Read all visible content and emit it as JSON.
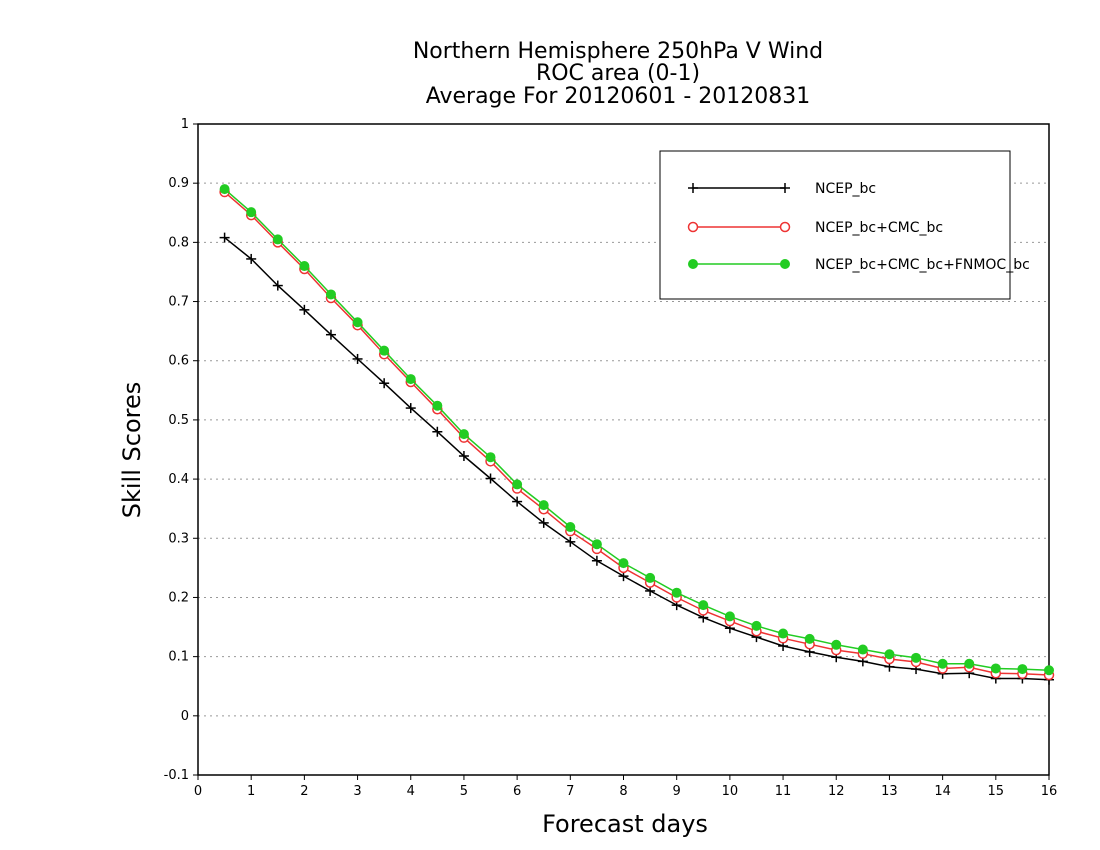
{
  "chart_data": {
    "type": "line",
    "title": [
      "Northern Hemisphere 250hPa V Wind",
      "ROC area (0-1)",
      "Average For 20120601 - 20120831"
    ],
    "xlabel": "Forecast days",
    "ylabel": "Skill Scores",
    "xlim": [
      0,
      16
    ],
    "ylim": [
      -0.1,
      1
    ],
    "xticks": [
      0,
      1,
      2,
      3,
      4,
      5,
      6,
      7,
      8,
      9,
      10,
      11,
      12,
      13,
      14,
      15,
      16
    ],
    "yticks": [
      -0.1,
      0,
      0.1,
      0.2,
      0.3,
      0.4,
      0.5,
      0.6,
      0.7,
      0.8,
      0.9,
      1
    ],
    "ytick_labels": [
      "-0.1",
      "0",
      "0.1",
      "0.2",
      "0.3",
      "0.4",
      "0.5",
      "0.6",
      "0.7",
      "0.8",
      "0.9",
      "1"
    ],
    "grid": "horizontal dotted",
    "legend_position": "top-right",
    "x": [
      0.5,
      1,
      1.5,
      2,
      2.5,
      3,
      3.5,
      4,
      4.5,
      5,
      5.5,
      6,
      6.5,
      7,
      7.5,
      8,
      8.5,
      9,
      9.5,
      10,
      10.5,
      11,
      11.5,
      12,
      12.5,
      13,
      13.5,
      14,
      14.5,
      15,
      15.5,
      16
    ],
    "series": [
      {
        "name": "NCEP_bc",
        "color": "#000000",
        "marker": "plus",
        "values": [
          0.808,
          0.772,
          0.727,
          0.686,
          0.644,
          0.603,
          0.562,
          0.52,
          0.48,
          0.439,
          0.401,
          0.362,
          0.326,
          0.294,
          0.262,
          0.236,
          0.211,
          0.187,
          0.166,
          0.148,
          0.133,
          0.118,
          0.108,
          0.099,
          0.092,
          0.083,
          0.079,
          0.071,
          0.072,
          0.063,
          0.063,
          0.061
        ]
      },
      {
        "name": "NCEP_bc+CMC_bc",
        "color": "#ee3333",
        "marker": "open-circle",
        "values": [
          0.885,
          0.846,
          0.8,
          0.755,
          0.706,
          0.66,
          0.611,
          0.564,
          0.518,
          0.47,
          0.43,
          0.384,
          0.349,
          0.312,
          0.282,
          0.25,
          0.225,
          0.2,
          0.178,
          0.16,
          0.143,
          0.131,
          0.121,
          0.111,
          0.105,
          0.096,
          0.091,
          0.08,
          0.082,
          0.072,
          0.071,
          0.069
        ]
      },
      {
        "name": "NCEP_bc+CMC_bc+FNMOC_bc",
        "color": "#22cc22",
        "marker": "filled-circle",
        "values": [
          0.89,
          0.851,
          0.805,
          0.76,
          0.712,
          0.665,
          0.617,
          0.569,
          0.524,
          0.476,
          0.437,
          0.391,
          0.356,
          0.319,
          0.29,
          0.258,
          0.233,
          0.208,
          0.187,
          0.168,
          0.152,
          0.139,
          0.13,
          0.12,
          0.112,
          0.104,
          0.098,
          0.088,
          0.088,
          0.08,
          0.079,
          0.077
        ]
      }
    ]
  }
}
